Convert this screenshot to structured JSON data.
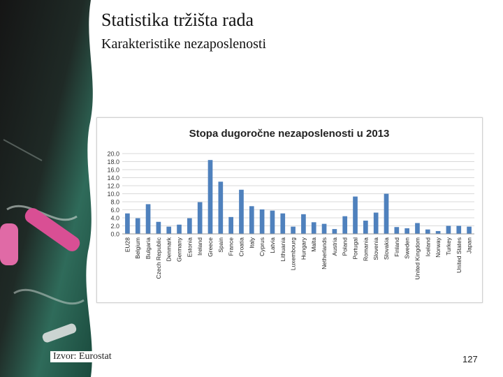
{
  "slide": {
    "title": "Statistika tržišta rada",
    "subtitle": "Karakteristike nezaposlenosti",
    "source": "Izvor: Eurostat",
    "page_number": "127"
  },
  "chart_data": {
    "type": "bar",
    "title": "Stopa dugoročne nezaposlenosti u 2013",
    "xlabel": "",
    "ylabel": "",
    "ylim": [
      0,
      20
    ],
    "yticks": [
      "0.0",
      "2.0",
      "4.0",
      "6.0",
      "8.0",
      "10.0",
      "12.0",
      "14.0",
      "16.0",
      "18.0",
      "20.0"
    ],
    "gridlines": true,
    "bar_color": "#4f81bd",
    "categories": [
      "EU28",
      "Belgium",
      "Bulgaria",
      "Czech Republic",
      "Denmark",
      "Germany",
      "Estonia",
      "Ireland",
      "Greece",
      "Spain",
      "France",
      "Croatia",
      "Italy",
      "Cyprus",
      "Latvia",
      "Lithuania",
      "Luxembourg",
      "Hungary",
      "Malta",
      "Netherlands",
      "Austria",
      "Poland",
      "Portugal",
      "Romania",
      "Slovenia",
      "Slovakia",
      "Finland",
      "Sweden",
      "United Kingdom",
      "Iceland",
      "Norway",
      "Turkey",
      "United States",
      "Japan"
    ],
    "values": [
      5.1,
      3.9,
      7.4,
      3.0,
      1.8,
      2.3,
      3.9,
      7.9,
      18.4,
      13.0,
      4.2,
      11.0,
      6.9,
      6.1,
      5.8,
      5.1,
      1.8,
      4.9,
      2.9,
      2.5,
      1.2,
      4.4,
      9.3,
      3.3,
      5.3,
      10.0,
      1.7,
      1.4,
      2.7,
      1.1,
      0.7,
      2.0,
      2.0,
      1.8
    ]
  }
}
